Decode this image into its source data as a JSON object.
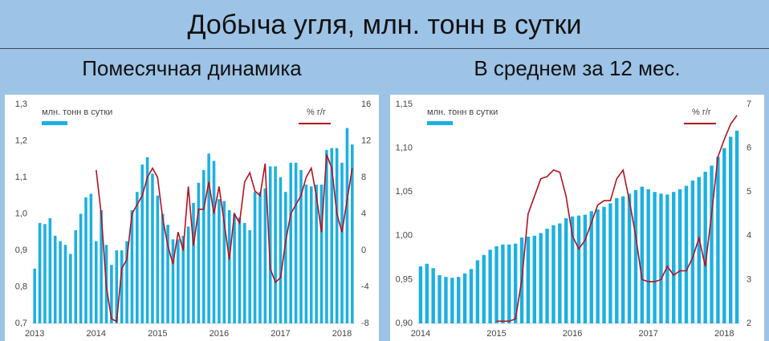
{
  "title": "Добыча угля, млн. тонн в сутки",
  "chart_data": [
    {
      "type": "bar",
      "title": "Помесячная динамика",
      "categories": [
        "2013",
        null,
        null,
        null,
        null,
        null,
        null,
        null,
        null,
        null,
        null,
        null,
        "2014",
        null,
        null,
        null,
        null,
        null,
        null,
        null,
        null,
        null,
        null,
        null,
        "2015",
        null,
        null,
        null,
        null,
        null,
        null,
        null,
        null,
        null,
        null,
        null,
        "2016",
        null,
        null,
        null,
        null,
        null,
        null,
        null,
        null,
        null,
        null,
        null,
        "2017",
        null,
        null,
        null,
        null,
        null,
        null,
        null,
        null,
        null,
        null,
        null,
        "2018",
        null,
        null
      ],
      "ylim": [
        0.7,
        1.3
      ],
      "yticks": [
        {
          "value": 0.7,
          "label": "0,7"
        },
        {
          "value": 0.8,
          "label": "0,8"
        },
        {
          "value": 0.9,
          "label": "0,9"
        },
        {
          "value": 1.0,
          "label": "1,0"
        },
        {
          "value": 1.1,
          "label": "1,1"
        },
        {
          "value": 1.2,
          "label": "1,2"
        },
        {
          "value": 1.3,
          "label": "1,3"
        }
      ],
      "y2lim": [
        -8,
        16
      ],
      "y2ticks": [
        -8,
        -4,
        0,
        4,
        8,
        12,
        16
      ],
      "series": [
        {
          "name": "млн. тонн в сутки",
          "type": "bar",
          "color": "#1cb0e2",
          "values": [
            0.85,
            0.975,
            0.972,
            0.988,
            0.94,
            0.925,
            0.915,
            0.89,
            0.955,
            1.0,
            1.045,
            1.055,
            0.925,
            1.01,
            0.915,
            0.86,
            0.9,
            0.9,
            0.925,
            1.01,
            1.06,
            1.135,
            1.155,
            1.11,
            1.05,
            1.0,
            0.97,
            0.93,
            0.93,
            0.94,
            0.965,
            1.03,
            1.085,
            1.12,
            1.165,
            1.145,
            1.04,
            1.035,
            1.01,
            1.0,
            0.99,
            0.975,
            0.955,
            1.06,
            1.06,
            1.07,
            1.13,
            1.13,
            1.1,
            1.06,
            1.14,
            1.14,
            1.12,
            1.08,
            1.075,
            1.08,
            1.08,
            1.175,
            1.18,
            1.18,
            1.14,
            1.235,
            1.19
          ]
        },
        {
          "name": "% г/г",
          "type": "line",
          "axis": "y2",
          "color": "#b3121f",
          "values": [
            null,
            null,
            null,
            null,
            null,
            null,
            null,
            null,
            null,
            null,
            null,
            null,
            8.8,
            4,
            -4,
            -7.5,
            -7.8,
            -2,
            -1,
            4,
            5,
            6,
            8,
            9,
            8,
            3.5,
            0.5,
            -1.5,
            2,
            0,
            7,
            0.5,
            4.5,
            4.5,
            7.5,
            4,
            7,
            3,
            -1,
            4,
            3,
            7.5,
            8.5,
            6.5,
            6,
            9.5,
            -2,
            -3.5,
            -3,
            1,
            4,
            5,
            6,
            8,
            9,
            6,
            2,
            10.5,
            9,
            4,
            2,
            5.5,
            9
          ]
        }
      ]
    },
    {
      "type": "bar",
      "title": "В среднем за 12 мес.",
      "categories": [
        "2014",
        null,
        null,
        null,
        null,
        null,
        null,
        null,
        null,
        null,
        null,
        null,
        "2015",
        null,
        null,
        null,
        null,
        null,
        null,
        null,
        null,
        null,
        null,
        null,
        "2016",
        null,
        null,
        null,
        null,
        null,
        null,
        null,
        null,
        null,
        null,
        null,
        "2017",
        null,
        null,
        null,
        null,
        null,
        null,
        null,
        null,
        null,
        null,
        null,
        "2018",
        null,
        null
      ],
      "ylim": [
        0.9,
        1.15
      ],
      "yticks": [
        {
          "value": 0.9,
          "label": "0,90"
        },
        {
          "value": 0.95,
          "label": "0,95"
        },
        {
          "value": 1.0,
          "label": "1,00"
        },
        {
          "value": 1.05,
          "label": "1,05"
        },
        {
          "value": 1.1,
          "label": "1,10"
        },
        {
          "value": 1.15,
          "label": "1,15"
        }
      ],
      "y2lim": [
        2,
        7
      ],
      "y2ticks": [
        2,
        3,
        4,
        5,
        6,
        7
      ],
      "series": [
        {
          "name": "млн. тонн в сутки",
          "type": "bar",
          "color": "#1cb0e2",
          "values": [
            0.965,
            0.968,
            0.963,
            0.955,
            0.953,
            0.952,
            0.953,
            0.957,
            0.962,
            0.972,
            0.978,
            0.984,
            0.988,
            0.99,
            0.99,
            0.991,
            0.998,
            0.999,
            1.0,
            1.003,
            1.008,
            1.012,
            1.014,
            1.02,
            1.022,
            1.023,
            1.024,
            1.028,
            1.03,
            1.033,
            1.037,
            1.043,
            1.045,
            1.048,
            1.052,
            1.056,
            1.053,
            1.05,
            1.048,
            1.047,
            1.05,
            1.053,
            1.057,
            1.063,
            1.067,
            1.073,
            1.08,
            1.09,
            1.1,
            1.113,
            1.12
          ]
        },
        {
          "name": "% г/г",
          "type": "line",
          "axis": "y2",
          "color": "#b3121f",
          "values": [
            null,
            null,
            null,
            null,
            null,
            null,
            null,
            null,
            null,
            null,
            null,
            null,
            2.05,
            2.05,
            2.05,
            2.1,
            3.0,
            4.5,
            4.9,
            5.3,
            5.35,
            5.5,
            5.45,
            4.9,
            4.0,
            3.7,
            3.9,
            4.3,
            4.7,
            4.8,
            4.8,
            5.3,
            5.5,
            4.8,
            4.0,
            3.0,
            2.95,
            2.95,
            3.0,
            3.3,
            3.1,
            3.2,
            3.2,
            3.5,
            3.95,
            3.3,
            4.5,
            5.8,
            6.2,
            6.55,
            6.75
          ]
        }
      ]
    }
  ]
}
